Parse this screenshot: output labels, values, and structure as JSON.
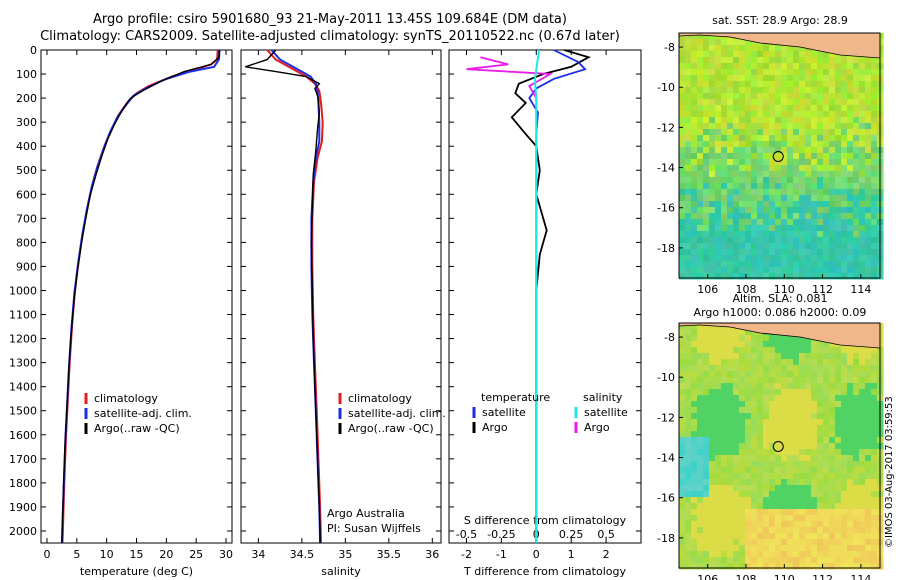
{
  "header": {
    "title_line1": "Argo profile: csiro 5901680_93 21-May-2011 13.45S 109.684E (DM data)",
    "title_line2": "Climatology: CARS2009. Satellite-adjusted climatology: synTS_20110522.nc (0.67d later)"
  },
  "maps": {
    "sst_title": "sat. SST: 28.9 Argo: 28.9",
    "sla_title_line1": "Altim. SLA: 0.081",
    "sla_title_line2": "Argo h1000: 0.086 h2000: 0.09",
    "x_ticks": [
      "106",
      "108",
      "110",
      "112",
      "114"
    ],
    "y_ticks": [
      "-8",
      "-10",
      "-12",
      "-14",
      "-16",
      "-18"
    ],
    "side_label": "©IMOS 03-Aug-2017 03:59:53"
  },
  "colors": {
    "climatology": "#e81b1b",
    "satellite": "#1b2ee8",
    "argo": "#000000",
    "sal_satellite": "#1ee8e8",
    "sal_argo": "#e81be8"
  },
  "chart_data": [
    {
      "type": "line",
      "xlabel": "temperature (deg C)",
      "ylabel": "",
      "xlim": [
        -1,
        31
      ],
      "ylim": [
        2050,
        0
      ],
      "x_ticks": [
        "0",
        "5",
        "10",
        "15",
        "20",
        "25",
        "30"
      ],
      "y_ticks": [
        "0",
        "100",
        "200",
        "300",
        "400",
        "500",
        "600",
        "700",
        "800",
        "900",
        "1000",
        "1100",
        "1200",
        "1300",
        "1400",
        "1500",
        "1600",
        "1700",
        "1800",
        "1900",
        "2000"
      ],
      "legend": [
        "climatology",
        "satellite-adj. clim.",
        "Argo(..raw -QC)"
      ],
      "series": [
        {
          "name": "climatology",
          "points": [
            [
              28.6,
              0
            ],
            [
              28.5,
              40
            ],
            [
              27.5,
              60
            ],
            [
              25,
              80
            ],
            [
              21,
              110
            ],
            [
              17,
              150
            ],
            [
              15,
              180
            ],
            [
              13.4,
              220
            ],
            [
              12,
              270
            ],
            [
              10.8,
              330
            ],
            [
              9.6,
              400
            ],
            [
              8.5,
              480
            ],
            [
              7.6,
              560
            ],
            [
              6.8,
              650
            ],
            [
              6,
              760
            ],
            [
              5.3,
              880
            ],
            [
              4.7,
              1000
            ],
            [
              4.2,
              1150
            ],
            [
              3.8,
              1300
            ],
            [
              3.5,
              1450
            ],
            [
              3.2,
              1600
            ],
            [
              2.9,
              1800
            ],
            [
              2.6,
              2050
            ]
          ]
        },
        {
          "name": "satellite-adj. clim.",
          "points": [
            [
              28.9,
              0
            ],
            [
              28.8,
              40
            ],
            [
              28,
              70
            ],
            [
              24,
              90
            ],
            [
              20,
              120
            ],
            [
              16.5,
              160
            ],
            [
              14.5,
              190
            ],
            [
              13.2,
              230
            ],
            [
              11.8,
              280
            ],
            [
              10.6,
              340
            ],
            [
              9.5,
              410
            ],
            [
              8.4,
              490
            ],
            [
              7.5,
              570
            ],
            [
              6.7,
              660
            ],
            [
              5.9,
              770
            ],
            [
              5.2,
              890
            ],
            [
              4.6,
              1010
            ],
            [
              4.1,
              1160
            ],
            [
              3.7,
              1310
            ],
            [
              3.4,
              1460
            ],
            [
              3.1,
              1610
            ],
            [
              2.8,
              1810
            ],
            [
              2.5,
              2050
            ]
          ]
        },
        {
          "name": "Argo(..raw -QC)",
          "points": [
            [
              28.9,
              0
            ],
            [
              28.8,
              30
            ],
            [
              27.5,
              60
            ],
            [
              23,
              90
            ],
            [
              19,
              130
            ],
            [
              16,
              170
            ],
            [
              14,
              200
            ],
            [
              12.6,
              250
            ],
            [
              11.3,
              310
            ],
            [
              10.2,
              370
            ],
            [
              9.2,
              440
            ],
            [
              8.2,
              520
            ],
            [
              7.3,
              600
            ],
            [
              6.5,
              700
            ],
            [
              5.8,
              800
            ],
            [
              5.1,
              920
            ],
            [
              4.5,
              1050
            ],
            [
              4,
              1200
            ],
            [
              3.6,
              1350
            ],
            [
              3.3,
              1500
            ],
            [
              3,
              1650
            ],
            [
              2.8,
              1800
            ],
            [
              2.6,
              1950
            ],
            [
              2.5,
              2050
            ]
          ]
        }
      ]
    },
    {
      "type": "line",
      "xlabel": "salinity",
      "xlim": [
        33.8,
        36.1
      ],
      "ylim": [
        2050,
        0
      ],
      "x_ticks": [
        "34",
        "34.5",
        "35",
        "35.5",
        "36"
      ],
      "legend": [
        "climatology",
        "satellite-adj. clim.",
        "Argo(..raw -QC)"
      ],
      "annotation_line1": "Argo Australia",
      "annotation_line2": "PI: Susan Wijffels",
      "series": [
        {
          "name": "climatology",
          "points": [
            [
              34.1,
              0
            ],
            [
              34.2,
              40
            ],
            [
              34.4,
              80
            ],
            [
              34.55,
              110
            ],
            [
              34.65,
              140
            ],
            [
              34.7,
              170
            ],
            [
              34.72,
              220
            ],
            [
              34.74,
              300
            ],
            [
              34.73,
              380
            ],
            [
              34.68,
              450
            ],
            [
              34.64,
              550
            ],
            [
              34.62,
              700
            ],
            [
              34.62,
              900
            ],
            [
              34.63,
              1100
            ],
            [
              34.65,
              1300
            ],
            [
              34.67,
              1500
            ],
            [
              34.69,
              1700
            ],
            [
              34.71,
              1900
            ],
            [
              34.72,
              2050
            ]
          ]
        },
        {
          "name": "satellite-adj. clim.",
          "points": [
            [
              34.15,
              0
            ],
            [
              34.25,
              40
            ],
            [
              34.45,
              80
            ],
            [
              34.6,
              110
            ],
            [
              34.66,
              140
            ],
            [
              34.68,
              170
            ],
            [
              34.69,
              220
            ],
            [
              34.7,
              300
            ],
            [
              34.7,
              380
            ],
            [
              34.66,
              450
            ],
            [
              34.63,
              550
            ],
            [
              34.61,
              700
            ],
            [
              34.61,
              900
            ],
            [
              34.62,
              1100
            ],
            [
              34.64,
              1300
            ],
            [
              34.66,
              1500
            ],
            [
              34.68,
              1700
            ],
            [
              34.7,
              1900
            ],
            [
              34.71,
              2050
            ]
          ]
        },
        {
          "name": "Argo(..raw -QC)",
          "points": [
            [
              34.2,
              0
            ],
            [
              34.1,
              40
            ],
            [
              33.85,
              70
            ],
            [
              34.2,
              90
            ],
            [
              34.55,
              110
            ],
            [
              34.7,
              140
            ],
            [
              34.65,
              160
            ],
            [
              34.69,
              200
            ],
            [
              34.7,
              260
            ],
            [
              34.68,
              330
            ],
            [
              34.66,
              420
            ],
            [
              34.63,
              520
            ],
            [
              34.62,
              650
            ],
            [
              34.61,
              800
            ],
            [
              34.62,
              1000
            ],
            [
              34.63,
              1200
            ],
            [
              34.65,
              1400
            ],
            [
              34.67,
              1600
            ],
            [
              34.69,
              1800
            ],
            [
              34.71,
              2000
            ],
            [
              34.71,
              2050
            ]
          ]
        }
      ]
    },
    {
      "type": "line",
      "xlabel": "T difference from climatology",
      "secondary_xlabel": "S difference from climatology",
      "xlim": [
        -2.5,
        3
      ],
      "secondary_xlim": [
        -0.625,
        0.75
      ],
      "ylim": [
        2050,
        0
      ],
      "x_ticks": [
        "-2",
        "-1",
        "0",
        "1",
        "2"
      ],
      "secondary_x_ticks": [
        "-0.5",
        "-0.25",
        "0",
        "0.25",
        "0.5"
      ],
      "legend_title_t": "temperature",
      "legend_title_s": "salinity",
      "legend": [
        "satellite",
        "Argo",
        "satellite",
        "Argo"
      ],
      "series": [
        {
          "name": "satellite",
          "group": "temperature",
          "points": [
            [
              0.5,
              0
            ],
            [
              1.2,
              50
            ],
            [
              1.4,
              80
            ],
            [
              0.5,
              120
            ],
            [
              0,
              160
            ],
            [
              -0.2,
              200
            ],
            [
              0.05,
              260
            ],
            [
              0,
              350
            ],
            [
              0,
              500
            ],
            [
              0,
              700
            ],
            [
              0,
              1000
            ],
            [
              0,
              1300
            ],
            [
              0,
              1600
            ],
            [
              0,
              2050
            ]
          ]
        },
        {
          "name": "Argo",
          "group": "temperature",
          "points": [
            [
              0.8,
              0
            ],
            [
              1.5,
              30
            ],
            [
              1,
              70
            ],
            [
              0.2,
              100
            ],
            [
              -0.5,
              140
            ],
            [
              -0.6,
              180
            ],
            [
              -0.3,
              220
            ],
            [
              -0.7,
              280
            ],
            [
              -0.3,
              350
            ],
            [
              0,
              400
            ],
            [
              0.1,
              500
            ],
            [
              0,
              600
            ],
            [
              0.3,
              750
            ],
            [
              0.1,
              850
            ],
            [
              0,
              1000
            ],
            [
              0,
              1300
            ],
            [
              0,
              1600
            ],
            [
              0,
              1900
            ],
            [
              0,
              2050
            ]
          ]
        },
        {
          "name": "satellite",
          "group": "salinity",
          "points": [
            [
              0.02,
              0
            ],
            [
              0.01,
              40
            ],
            [
              0,
              80
            ],
            [
              -0.01,
              120
            ],
            [
              0,
              200
            ],
            [
              0,
              400
            ],
            [
              0,
              700
            ],
            [
              0,
              1000
            ],
            [
              0,
              1500
            ],
            [
              0,
              2050
            ]
          ]
        },
        {
          "name": "Argo",
          "group": "salinity",
          "points": [
            [
              -0.4,
              30
            ],
            [
              -0.2,
              60
            ],
            [
              -0.5,
              80
            ],
            [
              0.1,
              100
            ],
            [
              -0.05,
              150
            ],
            [
              0,
              200
            ],
            [
              0,
              300
            ],
            [
              0,
              500
            ],
            [
              0,
              800
            ],
            [
              0,
              1100
            ],
            [
              0,
              1500
            ],
            [
              0,
              2050
            ]
          ]
        }
      ]
    }
  ]
}
